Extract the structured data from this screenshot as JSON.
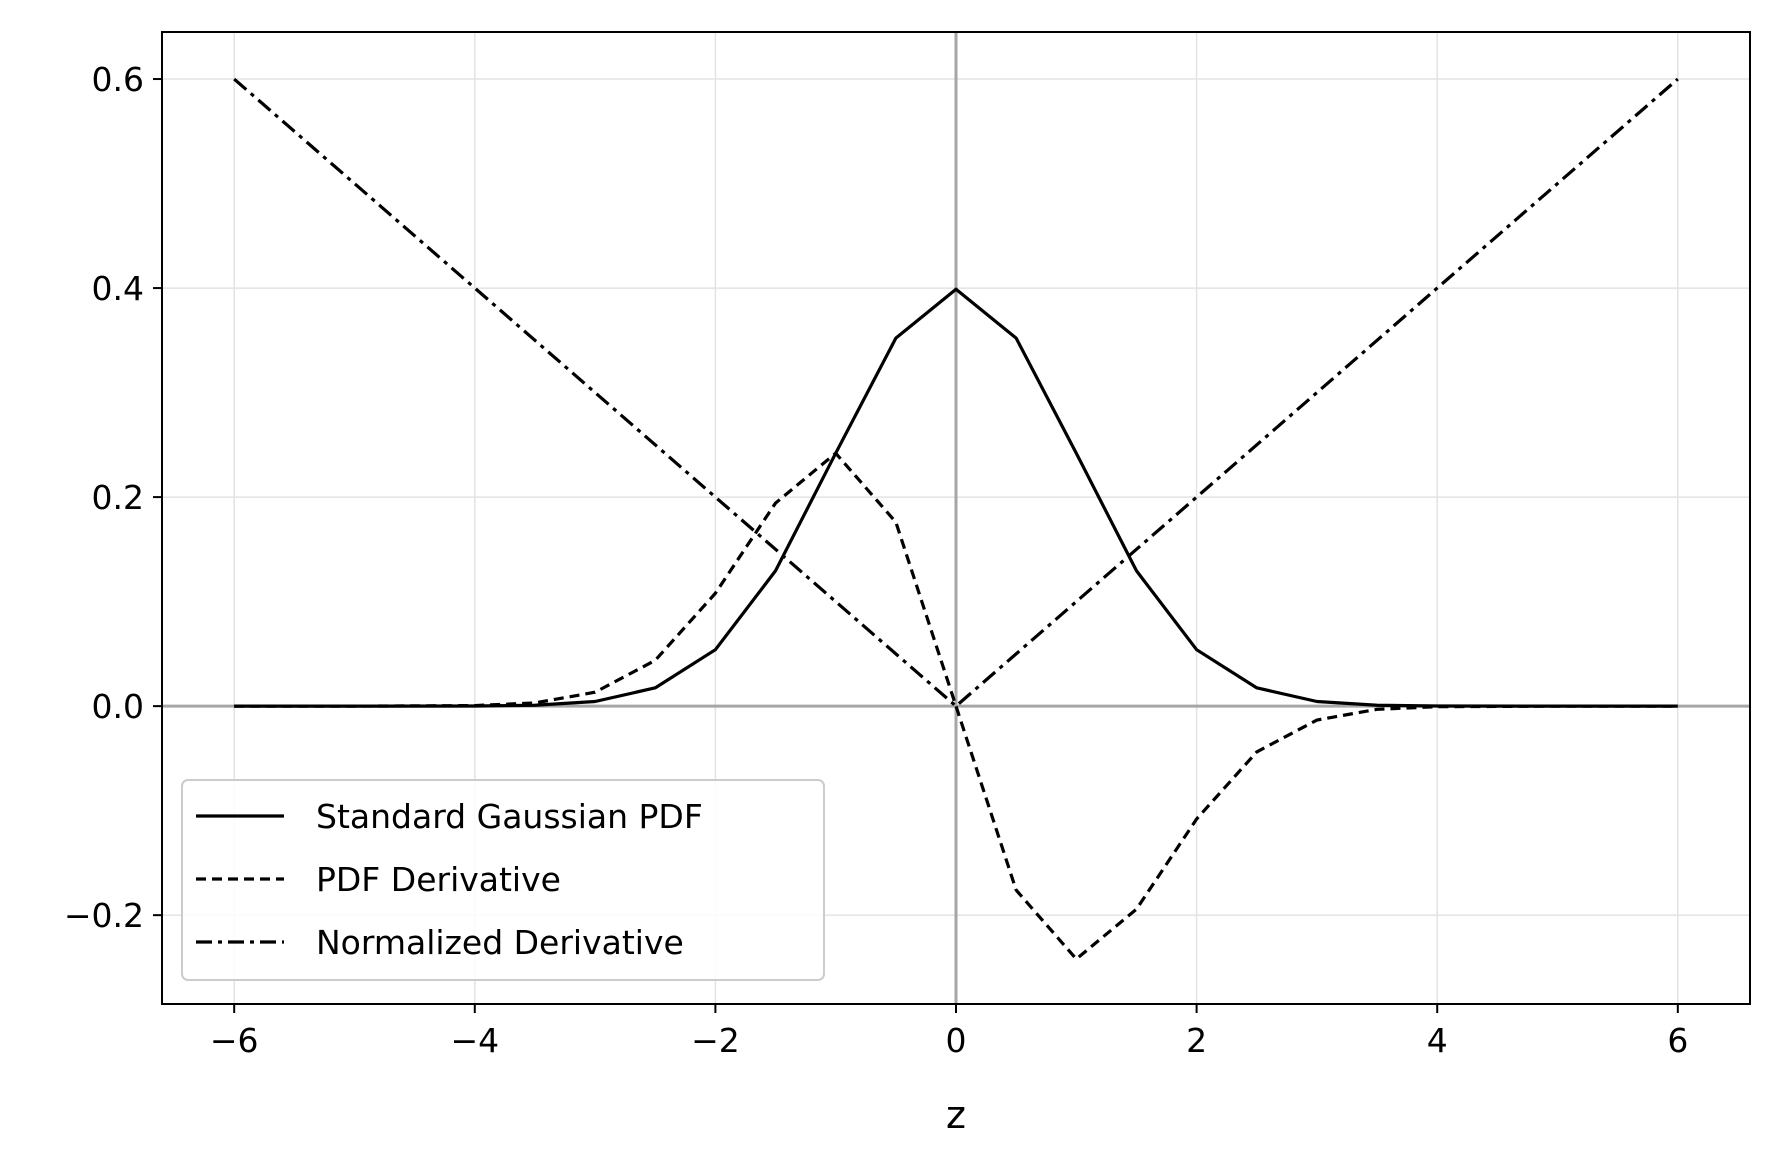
{
  "chart_data": {
    "type": "line",
    "title": "",
    "xlabel": "z",
    "ylabel": "",
    "xlim": [
      -6.6,
      6.6
    ],
    "ylim": [
      -0.285,
      0.645
    ],
    "x_ticks": [
      -6,
      -4,
      -2,
      0,
      2,
      4,
      6
    ],
    "x_tick_labels": [
      "−6",
      "−4",
      "−2",
      "0",
      "2",
      "4",
      "6"
    ],
    "y_ticks": [
      -0.2,
      0.0,
      0.2,
      0.4,
      0.6
    ],
    "y_tick_labels": [
      "−0.2",
      "0.0",
      "0.2",
      "0.4",
      "0.6"
    ],
    "grid": true,
    "reference_lines": {
      "x": 0,
      "y": 0
    },
    "legend_position": "lower-left",
    "x": [
      -6,
      -5,
      -4,
      -3.5,
      -3,
      -2.5,
      -2,
      -1.5,
      -1,
      -0.5,
      0,
      0.5,
      1,
      1.5,
      2,
      2.5,
      3,
      3.5,
      4,
      5,
      6
    ],
    "series": [
      {
        "name": "Standard Gaussian PDF",
        "style": "solid",
        "color": "#000000",
        "values": [
          0.0,
          1.5e-06,
          0.000134,
          0.000873,
          0.00443,
          0.0175,
          0.054,
          0.1295,
          0.242,
          0.3521,
          0.3989,
          0.3521,
          0.242,
          0.1295,
          0.054,
          0.0175,
          0.00443,
          0.000873,
          0.000134,
          1.5e-06,
          0.0
        ]
      },
      {
        "name": "PDF Derivative",
        "style": "dashed",
        "color": "#000000",
        "values": [
          0.0,
          7.4e-06,
          0.000535,
          0.003055,
          0.0133,
          0.0438,
          0.108,
          0.1943,
          0.242,
          0.176,
          0.0,
          -0.176,
          -0.242,
          -0.1943,
          -0.108,
          -0.0438,
          -0.0133,
          -0.003055,
          -0.000535,
          -7.4e-06,
          0.0
        ]
      },
      {
        "name": "Normalized Derivative",
        "style": "dashdot",
        "color": "#000000",
        "values": [
          0.6,
          0.5,
          0.4,
          0.35,
          0.3,
          0.25,
          0.2,
          0.15,
          0.1,
          0.05,
          0.0,
          0.05,
          0.1,
          0.15,
          0.2,
          0.25,
          0.3,
          0.35,
          0.4,
          0.5,
          0.6
        ]
      }
    ]
  }
}
